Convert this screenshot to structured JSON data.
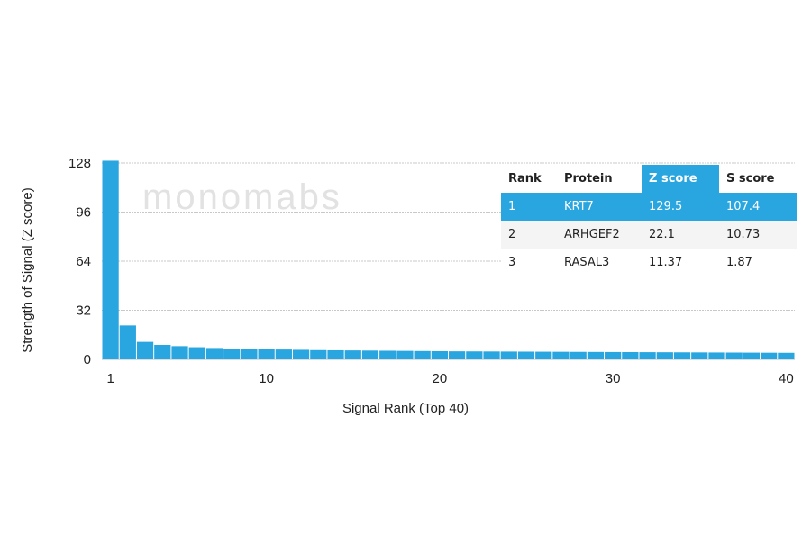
{
  "chart_data": {
    "type": "bar",
    "title": "",
    "xlabel": "Signal Rank (Top 40)",
    "ylabel": "Strength of Signal (Z score)",
    "x": [
      1,
      2,
      3,
      4,
      5,
      6,
      7,
      8,
      9,
      10,
      11,
      12,
      13,
      14,
      15,
      16,
      17,
      18,
      19,
      20,
      21,
      22,
      23,
      24,
      25,
      26,
      27,
      28,
      29,
      30,
      31,
      32,
      33,
      34,
      35,
      36,
      37,
      38,
      39,
      40
    ],
    "values": [
      129.5,
      22.1,
      11.37,
      9.4,
      8.6,
      7.9,
      7.4,
      7.0,
      6.8,
      6.6,
      6.4,
      6.2,
      6.0,
      5.9,
      5.8,
      5.7,
      5.6,
      5.5,
      5.4,
      5.3,
      5.2,
      5.15,
      5.1,
      5.05,
      5.0,
      4.95,
      4.9,
      4.85,
      4.8,
      4.75,
      4.7,
      4.65,
      4.6,
      4.55,
      4.5,
      4.45,
      4.4,
      4.35,
      4.3,
      4.25
    ],
    "ylim": [
      0,
      128
    ],
    "yticks": [
      0,
      32,
      64,
      96,
      128
    ],
    "xticks": [
      1,
      10,
      20,
      30,
      40
    ],
    "grid": true,
    "bar_color": "#29a6e0"
  },
  "watermark": "monomabs",
  "table": {
    "headers": [
      "Rank",
      "Protein",
      "Z score",
      "S score"
    ],
    "rows": [
      [
        "1",
        "KRT7",
        "129.5",
        "107.4"
      ],
      [
        "2",
        "ARHGEF2",
        "22.1",
        "10.73"
      ],
      [
        "3",
        "RASAL3",
        "11.37",
        "1.87"
      ]
    ],
    "highlight_color": "#29a6e0"
  }
}
